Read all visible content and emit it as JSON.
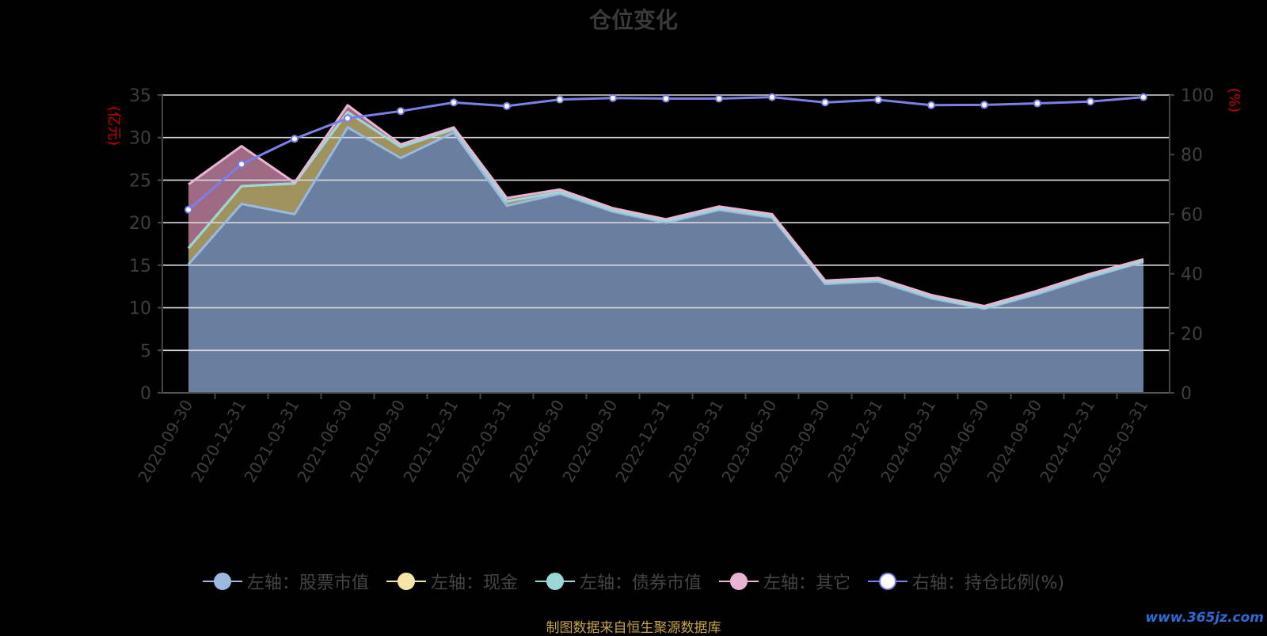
{
  "title": "仓位变化",
  "left_unit": "(亿元)",
  "right_unit": "(%)",
  "source": "制图数据来自恒生聚源数据库",
  "watermark": "www.365jz.com",
  "legend": [
    {
      "label": "左轴：股票市值",
      "color": "#9ab8e0"
    },
    {
      "label": "左轴：现金",
      "color": "#f5e6a5"
    },
    {
      "label": "左轴：债券市值",
      "color": "#9ad8d8"
    },
    {
      "label": "左轴：其它",
      "color": "#e8b4d4"
    },
    {
      "label": "右轴：持仓比例(%)",
      "color": "#7b7fe8"
    }
  ],
  "chart_data": {
    "type": "area",
    "categories": [
      "2020-09-30",
      "2020-12-31",
      "2021-03-31",
      "2021-06-30",
      "2021-09-30",
      "2021-12-31",
      "2022-03-31",
      "2022-06-30",
      "2022-09-30",
      "2022-12-31",
      "2023-03-31",
      "2023-06-30",
      "2023-09-30",
      "2023-12-31",
      "2024-03-31",
      "2024-06-30",
      "2024-09-30",
      "2024-12-31",
      "2025-03-31"
    ],
    "y_left": {
      "min": 0,
      "max": 35,
      "ticks": [
        0,
        5,
        10,
        15,
        20,
        25,
        30,
        35
      ]
    },
    "y_right": {
      "min": 0,
      "max": 100,
      "ticks": [
        0,
        20,
        40,
        60,
        80,
        100
      ]
    },
    "stacked_series": [
      {
        "name": "左轴：股票市值",
        "axis": "left",
        "color": "#9ab8e0",
        "values": [
          15.1,
          22.2,
          21.0,
          31.2,
          27.6,
          30.6,
          22.0,
          23.4,
          21.3,
          20.0,
          21.5,
          20.6,
          12.8,
          13.1,
          11.1,
          9.9,
          11.6,
          13.6,
          15.4
        ]
      },
      {
        "name": "左轴：现金",
        "axis": "left",
        "color": "#f5e6a5",
        "values": [
          1.9,
          2.1,
          3.6,
          1.8,
          1.3,
          0.4,
          0.5,
          0.2,
          0.2,
          0.2,
          0.2,
          0.2,
          0.2,
          0.2,
          0.2,
          0.1,
          0.2,
          0.2,
          0.1
        ]
      },
      {
        "name": "左轴：债券市值",
        "axis": "left",
        "color": "#9ad8d8",
        "values": [
          0,
          0,
          0,
          0,
          0,
          0,
          0,
          0,
          0,
          0,
          0,
          0,
          0,
          0,
          0,
          0,
          0,
          0,
          0
        ]
      },
      {
        "name": "左轴：其它",
        "axis": "left",
        "color": "#e8b4d4",
        "values": [
          7.5,
          4.7,
          0.1,
          0.8,
          0.3,
          0.2,
          0.4,
          0.3,
          0.2,
          0.2,
          0.2,
          0.2,
          0.2,
          0.2,
          0.2,
          0.2,
          0.2,
          0.2,
          0.2
        ]
      }
    ],
    "line_series": {
      "name": "右轴：持仓比例(%)",
      "axis": "right",
      "color": "#7b7fe8",
      "values": [
        61.5,
        76.8,
        85.3,
        92.2,
        94.6,
        97.5,
        96.3,
        98.5,
        99.0,
        98.8,
        98.8,
        99.3,
        97.5,
        98.4,
        96.6,
        96.7,
        97.2,
        97.8,
        99.3
      ]
    },
    "grid": true
  }
}
